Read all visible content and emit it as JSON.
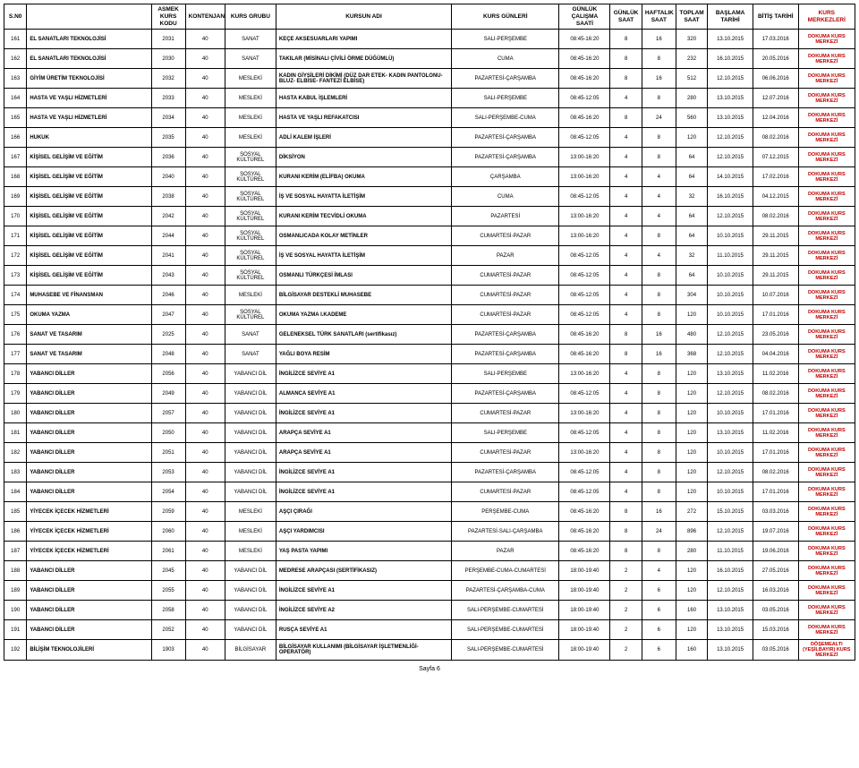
{
  "headers": {
    "sno": "S.N0",
    "name_blank": "",
    "kod": "ASMEK KURS KODU",
    "kont": "KONTENJAN",
    "grup": "KURS GRUBU",
    "kursadi": "KURSUN ADI",
    "gunleri": "KURS GÜNLERİ",
    "calis": "GÜNLÜK ÇALIŞMA SAATİ",
    "gsaat": "GÜNLÜK SAAT",
    "hsaat": "HAFTALIK SAAT",
    "tsaat": "TOPLAM SAAT",
    "basla": "BAŞLAMA TARİHİ",
    "bitis": "BİTİŞ TARİHİ",
    "merkez": "KURS MERKEZLERİ"
  },
  "rows": [
    {
      "sno": "161",
      "name": "EL SANATLARI TEKNOLOJİSİ",
      "kod": "2031",
      "kont": "40",
      "grup": "SANAT",
      "kursadi": "KEÇE AKSESUARLARI YAPIMI",
      "gunleri": "SALI-PERŞEMBE",
      "calis": "08:45-16:20",
      "gsaat": "8",
      "hsaat": "16",
      "tsaat": "320",
      "basla": "13.10.2015",
      "bitis": "17.03.2016",
      "merkez": "DOKUMA KURS MERKEZİ"
    },
    {
      "sno": "162",
      "name": "EL SANATLARI TEKNOLOJİSİ",
      "kod": "2030",
      "kont": "40",
      "grup": "SANAT",
      "kursadi": "TAKILAR (MİSİNALI ÇİVİLİ ÖRME DÜĞÜMLÜ)",
      "gunleri": "CUMA",
      "calis": "08:45-16:20",
      "gsaat": "8",
      "hsaat": "8",
      "tsaat": "232",
      "basla": "16.10.2015",
      "bitis": "20.05.2016",
      "merkez": "DOKUMA KURS MERKEZİ"
    },
    {
      "sno": "163",
      "name": "GİYİM ÜRETİM TEKNOLOJİSİ",
      "kod": "2032",
      "kont": "40",
      "grup": "MESLEKİ",
      "kursadi": "KADIN GİYSİLERİ DİKİMİ (DÜZ DAR ETEK- KADIN PANTOLONU-BLUZ- ELBİSE- FANTEZİ ELBİSE)",
      "gunleri": "PAZARTESİ-ÇARŞAMBA",
      "calis": "08:45-16:20",
      "gsaat": "8",
      "hsaat": "16",
      "tsaat": "512",
      "basla": "12.10.2015",
      "bitis": "06.06.2016",
      "merkez": "DOKUMA KURS MERKEZİ"
    },
    {
      "sno": "164",
      "name": "HASTA VE YAŞLI HİZMETLERİ",
      "kod": "2033",
      "kont": "40",
      "grup": "MESLEKİ",
      "kursadi": "HASTA KABUL İŞLEMLERİ",
      "gunleri": "SALI-PERŞEMBE",
      "calis": "08:45-12:05",
      "gsaat": "4",
      "hsaat": "8",
      "tsaat": "280",
      "basla": "13.10.2015",
      "bitis": "12.07.2016",
      "merkez": "DOKUMA KURS MERKEZİ"
    },
    {
      "sno": "165",
      "name": "HASTA VE YAŞLI HİZMETLERİ",
      "kod": "2034",
      "kont": "40",
      "grup": "MESLEKİ",
      "kursadi": "HASTA VE YAŞLI REFAKATCISI",
      "gunleri": "SALI-PERŞEMBE-CUMA",
      "calis": "08:45-16:20",
      "gsaat": "8",
      "hsaat": "24",
      "tsaat": "560",
      "basla": "13.10.2015",
      "bitis": "12.04.2016",
      "merkez": "DOKUMA KURS MERKEZİ"
    },
    {
      "sno": "166",
      "name": "HUKUK",
      "kod": "2035",
      "kont": "40",
      "grup": "MESLEKİ",
      "kursadi": "ADLİ KALEM İŞLERİ",
      "gunleri": "PAZARTESİ-ÇARŞAMBA",
      "calis": "08:45-12:05",
      "gsaat": "4",
      "hsaat": "8",
      "tsaat": "120",
      "basla": "12.10.2015",
      "bitis": "08.02.2016",
      "merkez": "DOKUMA KURS MERKEZİ"
    },
    {
      "sno": "167",
      "name": "KİŞİSEL GELİŞİM VE EĞİTİM",
      "kod": "2036",
      "kont": "40",
      "grup": "SOSYAL KÜLTÜREL",
      "kursadi": "DİKSİYON",
      "gunleri": "PAZARTESİ-ÇARŞAMBA",
      "calis": "13:00-16:20",
      "gsaat": "4",
      "hsaat": "8",
      "tsaat": "64",
      "basla": "12.10.2015",
      "bitis": "07.12.2015",
      "merkez": "DOKUMA KURS MERKEZİ"
    },
    {
      "sno": "168",
      "name": "KİŞİSEL GELİŞİM VE EĞİTİM",
      "kod": "2040",
      "kont": "40",
      "grup": "SOSYAL KÜLTÜREL",
      "kursadi": "KURANI KERİM (ELİFBA) OKUMA",
      "gunleri": "ÇARŞAMBA",
      "calis": "13:00-16:20",
      "gsaat": "4",
      "hsaat": "4",
      "tsaat": "64",
      "basla": "14.10.2015",
      "bitis": "17.02.2016",
      "merkez": "DOKUMA KURS MERKEZİ"
    },
    {
      "sno": "169",
      "name": "KİŞİSEL GELİŞİM VE EĞİTİM",
      "kod": "2038",
      "kont": "40",
      "grup": "SOSYAL KÜLTÜREL",
      "kursadi": "İŞ VE SOSYAL HAYATTA İLETİŞİM",
      "gunleri": "CUMA",
      "calis": "08:45-12:05",
      "gsaat": "4",
      "hsaat": "4",
      "tsaat": "32",
      "basla": "16.10.2015",
      "bitis": "04.12.2015",
      "merkez": "DOKUMA KURS MERKEZİ"
    },
    {
      "sno": "170",
      "name": "KİŞİSEL GELİŞİM VE EĞİTİM",
      "kod": "2042",
      "kont": "40",
      "grup": "SOSYAL KÜLTÜREL",
      "kursadi": "KURANI KERİM TECVİDLİ OKUMA",
      "gunleri": "PAZARTESİ",
      "calis": "13:00-16:20",
      "gsaat": "4",
      "hsaat": "4",
      "tsaat": "64",
      "basla": "12.10.2015",
      "bitis": "08.02.2016",
      "merkez": "DOKUMA KURS MERKEZİ"
    },
    {
      "sno": "171",
      "name": "KİŞİSEL GELİŞİM VE EĞİTİM",
      "kod": "2044",
      "kont": "40",
      "grup": "SOSYAL KÜLTÜREL",
      "kursadi": "OSMANLICADA KOLAY METİNLER",
      "gunleri": "CUMARTESİ-PAZAR",
      "calis": "13:00-16:20",
      "gsaat": "4",
      "hsaat": "8",
      "tsaat": "64",
      "basla": "10.10.2015",
      "bitis": "29.11.2015",
      "merkez": "DOKUMA KURS MERKEZİ"
    },
    {
      "sno": "172",
      "name": "KİŞİSEL GELİŞİM VE EĞİTİM",
      "kod": "2041",
      "kont": "40",
      "grup": "SOSYAL KÜLTÜREL",
      "kursadi": "İŞ VE SOSYAL HAYATTA İLETİŞİM",
      "gunleri": "PAZAR",
      "calis": "08:45-12:05",
      "gsaat": "4",
      "hsaat": "4",
      "tsaat": "32",
      "basla": "11.10.2015",
      "bitis": "29.11.2015",
      "merkez": "DOKUMA KURS MERKEZİ"
    },
    {
      "sno": "173",
      "name": "KİŞİSEL GELİŞİM VE EĞİTİM",
      "kod": "2043",
      "kont": "40",
      "grup": "SOSYAL KÜLTÜREL",
      "kursadi": "OSMANLI TÜRKÇESİ İMLASI",
      "gunleri": "CUMARTESİ-PAZAR",
      "calis": "08:45-12:05",
      "gsaat": "4",
      "hsaat": "8",
      "tsaat": "64",
      "basla": "10.10.2015",
      "bitis": "29.11.2015",
      "merkez": "DOKUMA KURS MERKEZİ"
    },
    {
      "sno": "174",
      "name": "MUHASEBE VE FİNANSMAN",
      "kod": "2046",
      "kont": "40",
      "grup": "MESLEKİ",
      "kursadi": "BİLGİSAYAR DESTEKLİ MUHASEBE",
      "gunleri": "CUMARTESİ-PAZAR",
      "calis": "08:45-12:05",
      "gsaat": "4",
      "hsaat": "8",
      "tsaat": "304",
      "basla": "10.10.2015",
      "bitis": "10.07.2016",
      "merkez": "DOKUMA KURS MERKEZİ"
    },
    {
      "sno": "175",
      "name": "OKUMA YAZMA",
      "kod": "2047",
      "kont": "40",
      "grup": "SOSYAL KÜLTÜREL",
      "kursadi": "OKUMA YAZMA I.KADEME",
      "gunleri": "CUMARTESİ-PAZAR",
      "calis": "08:45-12:05",
      "gsaat": "4",
      "hsaat": "8",
      "tsaat": "120",
      "basla": "10.10.2015",
      "bitis": "17.01.2016",
      "merkez": "DOKUMA KURS MERKEZİ"
    },
    {
      "sno": "176",
      "name": "SANAT VE TASARIM",
      "kod": "2025",
      "kont": "40",
      "grup": "SANAT",
      "kursadi": "GELENEKSEL TÜRK SANATLARI (sertifikasız)",
      "gunleri": "PAZARTESİ-ÇARŞAMBA",
      "calis": "08:45-16:20",
      "gsaat": "8",
      "hsaat": "16",
      "tsaat": "480",
      "basla": "12.10.2015",
      "bitis": "23.05.2016",
      "merkez": "DOKUMA KURS MERKEZİ"
    },
    {
      "sno": "177",
      "name": "SANAT VE TASARIM",
      "kod": "2048",
      "kont": "40",
      "grup": "SANAT",
      "kursadi": "YAĞLI BOYA RESİM",
      "gunleri": "PAZARTESİ-ÇARŞAMBA",
      "calis": "08:45-16:20",
      "gsaat": "8",
      "hsaat": "16",
      "tsaat": "368",
      "basla": "12.10.2015",
      "bitis": "04.04.2016",
      "merkez": "DOKUMA KURS MERKEZİ"
    },
    {
      "sno": "178",
      "name": "YABANCI DİLLER",
      "kod": "2056",
      "kont": "40",
      "grup": "YABANCI DİL",
      "kursadi": "İNGİLİZCE SEVİYE A1",
      "gunleri": "SALI-PERŞEMBE",
      "calis": "13:00-16:20",
      "gsaat": "4",
      "hsaat": "8",
      "tsaat": "120",
      "basla": "13.10.2015",
      "bitis": "11.02.2016",
      "merkez": "DOKUMA KURS MERKEZİ"
    },
    {
      "sno": "179",
      "name": "YABANCI DİLLER",
      "kod": "2049",
      "kont": "40",
      "grup": "YABANCI DİL",
      "kursadi": "ALMANCA SEVİYE A1",
      "gunleri": "PAZARTESİ-ÇARŞAMBA",
      "calis": "08:45-12:05",
      "gsaat": "4",
      "hsaat": "8",
      "tsaat": "120",
      "basla": "12.10.2015",
      "bitis": "08.02.2016",
      "merkez": "DOKUMA KURS MERKEZİ"
    },
    {
      "sno": "180",
      "name": "YABANCI DİLLER",
      "kod": "2057",
      "kont": "40",
      "grup": "YABANCI DİL",
      "kursadi": "İNGİLİZCE SEVİYE A1",
      "gunleri": "CUMARTESİ-PAZAR",
      "calis": "13:00-16:20",
      "gsaat": "4",
      "hsaat": "8",
      "tsaat": "120",
      "basla": "10.10.2015",
      "bitis": "17.01.2016",
      "merkez": "DOKUMA KURS MERKEZİ"
    },
    {
      "sno": "181",
      "name": "YABANCI DİLLER",
      "kod": "2050",
      "kont": "40",
      "grup": "YABANCI DİL",
      "kursadi": "ARAPÇA SEVİYE A1",
      "gunleri": "SALI-PERŞEMBE",
      "calis": "08:45-12:05",
      "gsaat": "4",
      "hsaat": "8",
      "tsaat": "120",
      "basla": "13.10.2015",
      "bitis": "11.02.2016",
      "merkez": "DOKUMA KURS MERKEZİ"
    },
    {
      "sno": "182",
      "name": "YABANCI DİLLER",
      "kod": "2051",
      "kont": "40",
      "grup": "YABANCI DİL",
      "kursadi": "ARAPÇA SEVİYE A1",
      "gunleri": "CUMARTESİ-PAZAR",
      "calis": "13:00-16:20",
      "gsaat": "4",
      "hsaat": "8",
      "tsaat": "120",
      "basla": "10.10.2015",
      "bitis": "17.01.2016",
      "merkez": "DOKUMA KURS MERKEZİ"
    },
    {
      "sno": "183",
      "name": "YABANCI DİLLER",
      "kod": "2053",
      "kont": "40",
      "grup": "YABANCI DİL",
      "kursadi": "İNGİLİZCE SEVİYE A1",
      "gunleri": "PAZARTESİ-ÇARŞAMBA",
      "calis": "08:45-12:05",
      "gsaat": "4",
      "hsaat": "8",
      "tsaat": "120",
      "basla": "12.10.2015",
      "bitis": "08.02.2016",
      "merkez": "DOKUMA KURS MERKEZİ"
    },
    {
      "sno": "184",
      "name": "YABANCI DİLLER",
      "kod": "2054",
      "kont": "40",
      "grup": "YABANCI DİL",
      "kursadi": "İNGİLİZCE SEVİYE A1",
      "gunleri": "CUMARTESİ-PAZAR",
      "calis": "08:45-12:05",
      "gsaat": "4",
      "hsaat": "8",
      "tsaat": "120",
      "basla": "10.10.2015",
      "bitis": "17.01.2016",
      "merkez": "DOKUMA KURS MERKEZİ"
    },
    {
      "sno": "185",
      "name": "YİYECEK İÇECEK HİZMETLERİ",
      "kod": "2059",
      "kont": "40",
      "grup": "MESLEKİ",
      "kursadi": "AŞÇI ÇIRAĞI",
      "gunleri": "PERŞEMBE-CUMA",
      "calis": "08:45-16:20",
      "gsaat": "8",
      "hsaat": "16",
      "tsaat": "272",
      "basla": "15.10.2015",
      "bitis": "03.03.2016",
      "merkez": "DOKUMA KURS MERKEZİ"
    },
    {
      "sno": "186",
      "name": "YİYECEK İÇECEK HİZMETLERİ",
      "kod": "2060",
      "kont": "40",
      "grup": "MESLEKİ",
      "kursadi": "AŞÇI YARDIMCISI",
      "gunleri": "PAZARTESİ-SALI-ÇARŞAMBA",
      "calis": "08:45-16:20",
      "gsaat": "8",
      "hsaat": "24",
      "tsaat": "896",
      "basla": "12.10.2015",
      "bitis": "19.07.2016",
      "merkez": "DOKUMA KURS MERKEZİ"
    },
    {
      "sno": "187",
      "name": "YİYECEK İÇECEK HİZMETLERİ",
      "kod": "2061",
      "kont": "40",
      "grup": "MESLEKİ",
      "kursadi": "YAŞ PASTA YAPIMI",
      "gunleri": "PAZAR",
      "calis": "08:45-16:20",
      "gsaat": "8",
      "hsaat": "8",
      "tsaat": "280",
      "basla": "11.10.2015",
      "bitis": "19.06.2016",
      "merkez": "DOKUMA KURS MERKEZİ"
    },
    {
      "sno": "188",
      "name": "YABANCI DİLLER",
      "kod": "2045",
      "kont": "40",
      "grup": "YABANCI DİL",
      "kursadi": "MEDRESE ARAPÇASI (SERTİFİKASIZ)",
      "gunleri": "PERŞEMBE-CUMA-CUMARTESİ",
      "calis": "18:00-19:40",
      "gsaat": "2",
      "hsaat": "4",
      "tsaat": "120",
      "basla": "16.10.2015",
      "bitis": "27.05.2016",
      "merkez": "DOKUMA KURS MERKEZİ"
    },
    {
      "sno": "189",
      "name": "YABANCI DİLLER",
      "kod": "2055",
      "kont": "40",
      "grup": "YABANCI DİL",
      "kursadi": "İNGİLİZCE SEVİYE A1",
      "gunleri": "PAZARTESİ-ÇARŞAMBA-CUMA",
      "calis": "18:00-19:40",
      "gsaat": "2",
      "hsaat": "6",
      "tsaat": "120",
      "basla": "12.10.2015",
      "bitis": "16.03.2016",
      "merkez": "DOKUMA KURS MERKEZİ"
    },
    {
      "sno": "190",
      "name": "YABANCI DİLLER",
      "kod": "2058",
      "kont": "40",
      "grup": "YABANCI DİL",
      "kursadi": "İNGİLİZCE SEVİYE A2",
      "gunleri": "SALI-PERŞEMBE-CUMARTESİ",
      "calis": "18:00-19:40",
      "gsaat": "2",
      "hsaat": "6",
      "tsaat": "160",
      "basla": "13.10.2015",
      "bitis": "03.05.2016",
      "merkez": "DOKUMA KURS MERKEZİ"
    },
    {
      "sno": "191",
      "name": "YABANCI DİLLER",
      "kod": "2052",
      "kont": "40",
      "grup": "YABANCI DİL",
      "kursadi": "RUSÇA SEVİYE A1",
      "gunleri": "SALI-PERŞEMBE-CUMARTESİ",
      "calis": "18:00-19:40",
      "gsaat": "2",
      "hsaat": "6",
      "tsaat": "120",
      "basla": "13.10.2015",
      "bitis": "15.03.2016",
      "merkez": "DOKUMA KURS MERKEZİ"
    },
    {
      "sno": "192",
      "name": "BİLİŞİM TEKNOLOJİLERİ",
      "kod": "1903",
      "kont": "40",
      "grup": "BİLGİSAYAR",
      "kursadi": "BİLGİSAYAR KULLANIMI (BİLGİSAYAR İŞLETMENLİĞİ-OPERATÖR)",
      "gunleri": "SALI-PERŞEMBE-CUMARTESİ",
      "calis": "18:00-19:40",
      "gsaat": "2",
      "hsaat": "6",
      "tsaat": "160",
      "basla": "13.10.2015",
      "bitis": "03.05.2016",
      "merkez": "DÖŞEMEALTI (YEŞİLBAYIR) KURS MERKEZİ"
    }
  ],
  "footer": "Sayfa 6",
  "style": {
    "merkez_color": "#c00000",
    "border_color": "#000000",
    "background_color": "#ffffff",
    "font_size_body": 6.5,
    "font_size_cell": 6
  }
}
